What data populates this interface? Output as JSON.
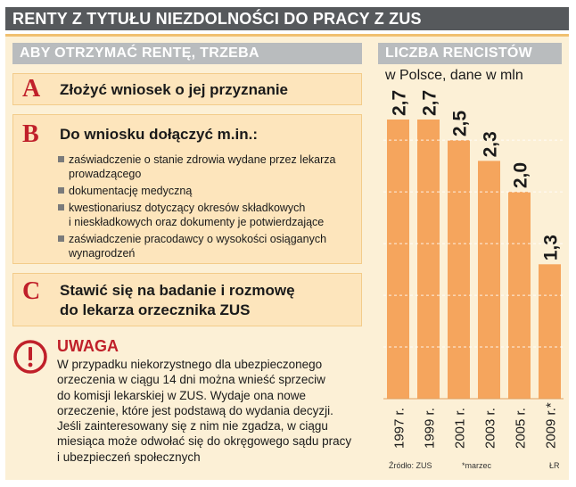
{
  "header": {
    "title": "RENTY Z TYTUŁU NIEZDOLNOŚCI DO PRACY Z ZUS"
  },
  "left": {
    "heading": "ABY OTRZYMAĆ RENTĘ, TRZEBA",
    "steps": [
      {
        "letter": "A",
        "title": "Złożyć wniosek o jej przyznanie"
      },
      {
        "letter": "B",
        "title": "Do wniosku dołączyć m.in.:",
        "items": [
          [
            "zaświadczenie o stanie zdrowia wydane przez lekarza",
            "prowadzącego"
          ],
          [
            "dokumentację medyczną"
          ],
          [
            "kwestionariusz dotyczący okresów składkowych",
            "i nieskładkowych oraz dokumenty je potwierdzające"
          ],
          [
            "zaświadczenie pracodawcy o wysokości osiąganych",
            "wynagrodzeń"
          ]
        ]
      },
      {
        "letter": "C",
        "title_lines": [
          "Stawić się na badanie i rozmowę",
          "do lekarza orzecznika ZUS"
        ]
      }
    ],
    "warning": {
      "title": "UWAGA",
      "lines": [
        "W przypadku niekorzystnego dla ubezpieczonego",
        "orzeczenia w ciągu 14 dni można wnieść sprzeciw",
        "do komisji lekarskiej w ZUS. Wydaje ona nowe",
        "orzeczenie, które jest podstawą do wydania decyzji.",
        "Jeśli zainteresowany się z nim nie zgadza, w ciągu",
        "miesiąca może odwołać się do okręgowego sądu pracy",
        "i ubezpieczeń społecznych"
      ]
    }
  },
  "chart_data": {
    "type": "bar",
    "title": "LICZBA RENCISTÓW",
    "subtitle": "w Polsce, dane w mln",
    "categories": [
      "1997 r.",
      "1999 r.",
      "2001 r.",
      "2003 r.",
      "2005 r.",
      "2009 r.*"
    ],
    "values": [
      2.7,
      2.7,
      2.5,
      2.3,
      2.0,
      1.3
    ],
    "value_labels": [
      "2,7",
      "2,7",
      "2,5",
      "2,3",
      "2,0",
      "1,3"
    ],
    "ylim": [
      0,
      2.7
    ],
    "grid": true,
    "bar_color": "#f5a55d",
    "source": "Źródło: ZUS",
    "footnote": "*marzec",
    "credit": "ŁR"
  },
  "colors": {
    "accent_red": "#c0202a",
    "bar": "#f5a55d",
    "panel": "#fcf0d6",
    "box": "#fde5bc"
  }
}
